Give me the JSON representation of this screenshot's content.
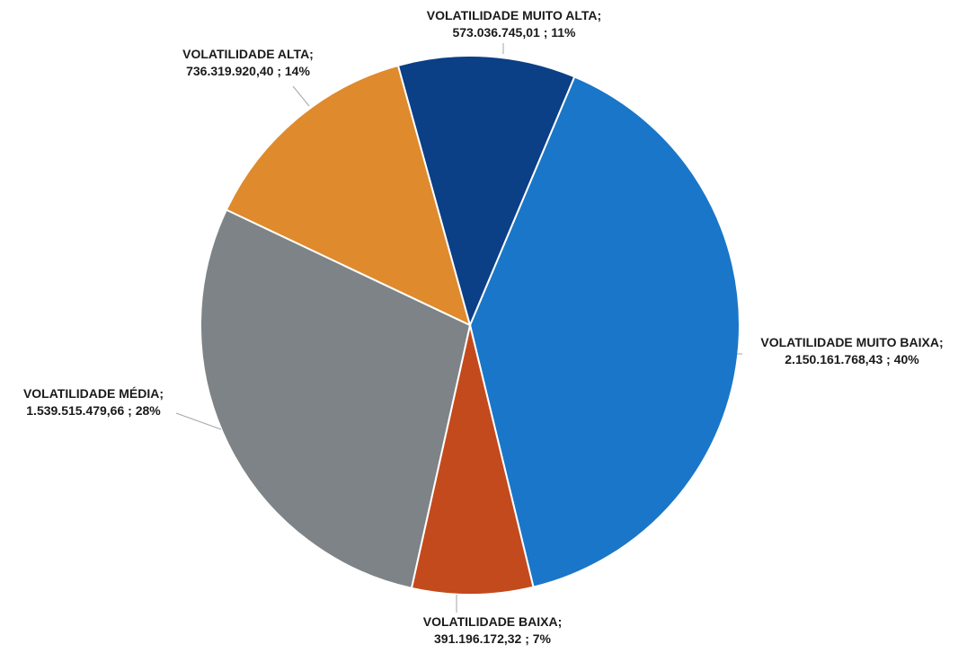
{
  "chart_data": {
    "type": "pie",
    "slices": [
      {
        "label": "VOLATILIDADE MUITO BAIXA;",
        "value": 2150161768.43,
        "value_text": "2.150.161.768,43",
        "percent": 40,
        "percent_text": "40%",
        "color": "#1a76c8"
      },
      {
        "label": "VOLATILIDADE BAIXA;",
        "value": 391196172.32,
        "value_text": "391.196.172,32",
        "percent": 7,
        "percent_text": "7%",
        "color": "#c34a1c"
      },
      {
        "label": "VOLATILIDADE MÉDIA;",
        "value": 1539515479.66,
        "value_text": "1.539.515.479,66",
        "percent": 28,
        "percent_text": "28%",
        "color": "#7d8386"
      },
      {
        "label": "VOLATILIDADE ALTA;",
        "value": 736319920.4,
        "value_text": "736.319.920,40",
        "percent": 14,
        "percent_text": "14%",
        "color": "#df8a2c"
      },
      {
        "label": "VOLATILIDADE MUITO ALTA;",
        "value": 573036745.01,
        "value_text": "573.036.745,01",
        "percent": 11,
        "percent_text": "11%",
        "color": "#0b3f86"
      }
    ],
    "start_angle_deg": 22.8,
    "direction": "clockwise",
    "legend": "none"
  }
}
